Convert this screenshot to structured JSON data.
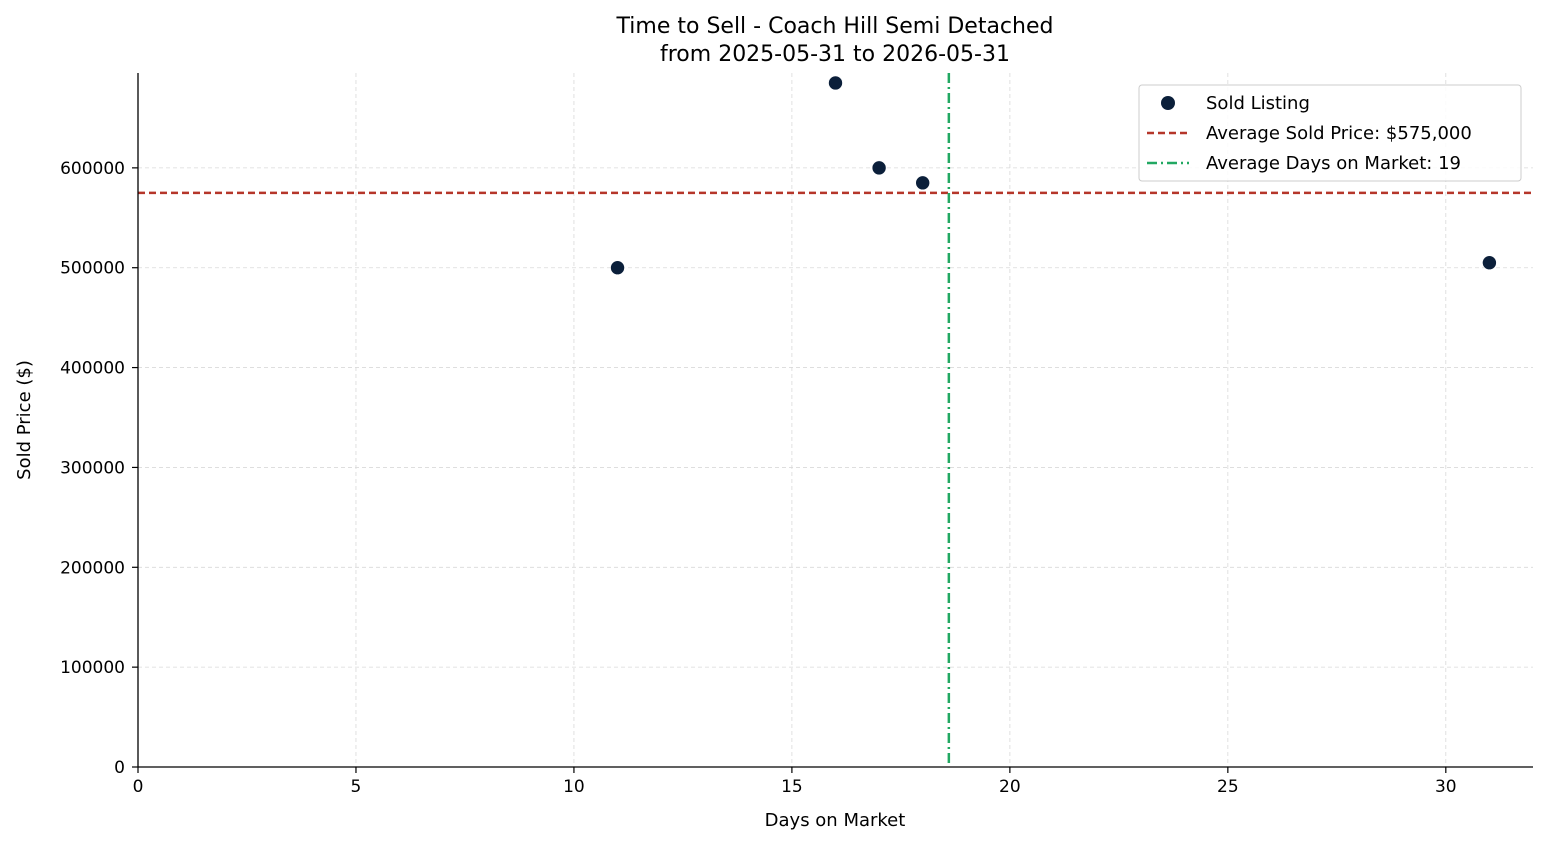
{
  "chart_data": {
    "type": "scatter",
    "title": "Time to Sell - Coach Hill Semi Detached",
    "subtitle": "from 2025-05-31 to 2026-05-31",
    "xlabel": "Days on Market",
    "ylabel": "Sold Price ($)",
    "xlim": [
      0,
      32
    ],
    "ylim": [
      0,
      695000
    ],
    "x_ticks": [
      0,
      5,
      10,
      15,
      20,
      25,
      30
    ],
    "y_ticks": [
      0,
      100000,
      200000,
      300000,
      400000,
      500000,
      600000
    ],
    "grid": true,
    "legend_position": "top-right",
    "series": [
      {
        "name": "Sold Listing",
        "color": "#0b1f3a",
        "points": [
          {
            "x": 11,
            "y": 500000
          },
          {
            "x": 16,
            "y": 685000
          },
          {
            "x": 17,
            "y": 600000
          },
          {
            "x": 18,
            "y": 585000
          },
          {
            "x": 31,
            "y": 505000
          }
        ]
      }
    ],
    "reference_lines": [
      {
        "orientation": "horizontal",
        "value": 575000,
        "label": "Average Sold Price: $575,000",
        "color": "#b5362a",
        "style": "dashed"
      },
      {
        "orientation": "vertical",
        "value": 18.6,
        "label": "Average Days on Market: 19",
        "color": "#22a862",
        "style": "dashdot"
      }
    ]
  }
}
